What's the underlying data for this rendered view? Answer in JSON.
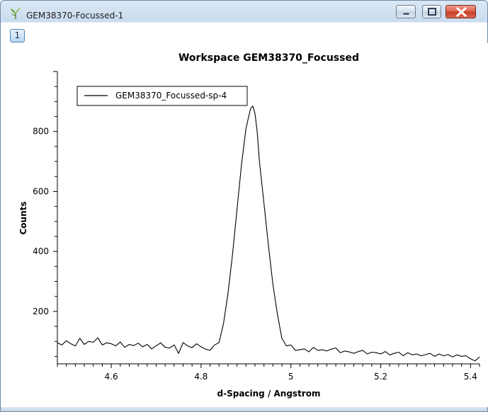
{
  "window": {
    "title": "GEM38370-Focussed-1",
    "page_badge": "1"
  },
  "icons": {
    "app": "mantid-plot-icon",
    "minimize": "minimize-icon",
    "maximize": "maximize-icon",
    "close": "close-icon"
  },
  "colors": {
    "close_button": "#c63d22",
    "line": "#000000"
  },
  "chart_data": {
    "type": "line",
    "title": "Workspace GEM38370_Focussed",
    "xlabel": "d-Spacing / Angstrom",
    "ylabel": "Counts",
    "xlim": [
      4.48,
      5.42
    ],
    "ylim": [
      25,
      1000
    ],
    "x_ticks": [
      "4.6",
      "4.8",
      "5",
      "5.2",
      "5.4"
    ],
    "y_ticks": [
      "200",
      "400",
      "600",
      "800"
    ],
    "legend_position": "top-left",
    "series": [
      {
        "name": "GEM38370_Focussed-sp-4",
        "x": [
          4.48,
          4.49,
          4.5,
          4.51,
          4.52,
          4.53,
          4.54,
          4.55,
          4.56,
          4.57,
          4.58,
          4.59,
          4.6,
          4.61,
          4.62,
          4.63,
          4.64,
          4.65,
          4.66,
          4.67,
          4.68,
          4.69,
          4.7,
          4.71,
          4.72,
          4.73,
          4.74,
          4.75,
          4.76,
          4.77,
          4.78,
          4.79,
          4.8,
          4.81,
          4.82,
          4.83,
          4.84,
          4.85,
          4.86,
          4.87,
          4.88,
          4.89,
          4.9,
          4.91,
          4.915,
          4.92,
          4.925,
          4.93,
          4.94,
          4.95,
          4.96,
          4.97,
          4.98,
          4.99,
          5.0,
          5.01,
          5.02,
          5.03,
          5.04,
          5.05,
          5.06,
          5.07,
          5.08,
          5.09,
          5.1,
          5.11,
          5.12,
          5.13,
          5.14,
          5.15,
          5.16,
          5.17,
          5.18,
          5.19,
          5.2,
          5.21,
          5.22,
          5.23,
          5.24,
          5.25,
          5.26,
          5.27,
          5.28,
          5.29,
          5.3,
          5.31,
          5.32,
          5.33,
          5.34,
          5.35,
          5.36,
          5.37,
          5.38,
          5.39,
          5.4,
          5.41,
          5.42
        ],
        "values": [
          95,
          88,
          102,
          92,
          85,
          110,
          90,
          100,
          97,
          112,
          88,
          95,
          92,
          85,
          98,
          80,
          90,
          86,
          94,
          82,
          90,
          75,
          85,
          95,
          80,
          78,
          88,
          60,
          96,
          85,
          79,
          92,
          82,
          74,
          70,
          88,
          96,
          160,
          260,
          390,
          540,
          690,
          810,
          875,
          885,
          860,
          800,
          700,
          560,
          420,
          290,
          190,
          110,
          85,
          88,
          70,
          72,
          75,
          65,
          80,
          70,
          72,
          68,
          74,
          78,
          62,
          68,
          65,
          60,
          66,
          70,
          58,
          64,
          62,
          58,
          66,
          55,
          60,
          64,
          52,
          62,
          55,
          58,
          52,
          56,
          60,
          50,
          58,
          52,
          56,
          48,
          55,
          50,
          52,
          42,
          35,
          48
        ]
      }
    ]
  }
}
